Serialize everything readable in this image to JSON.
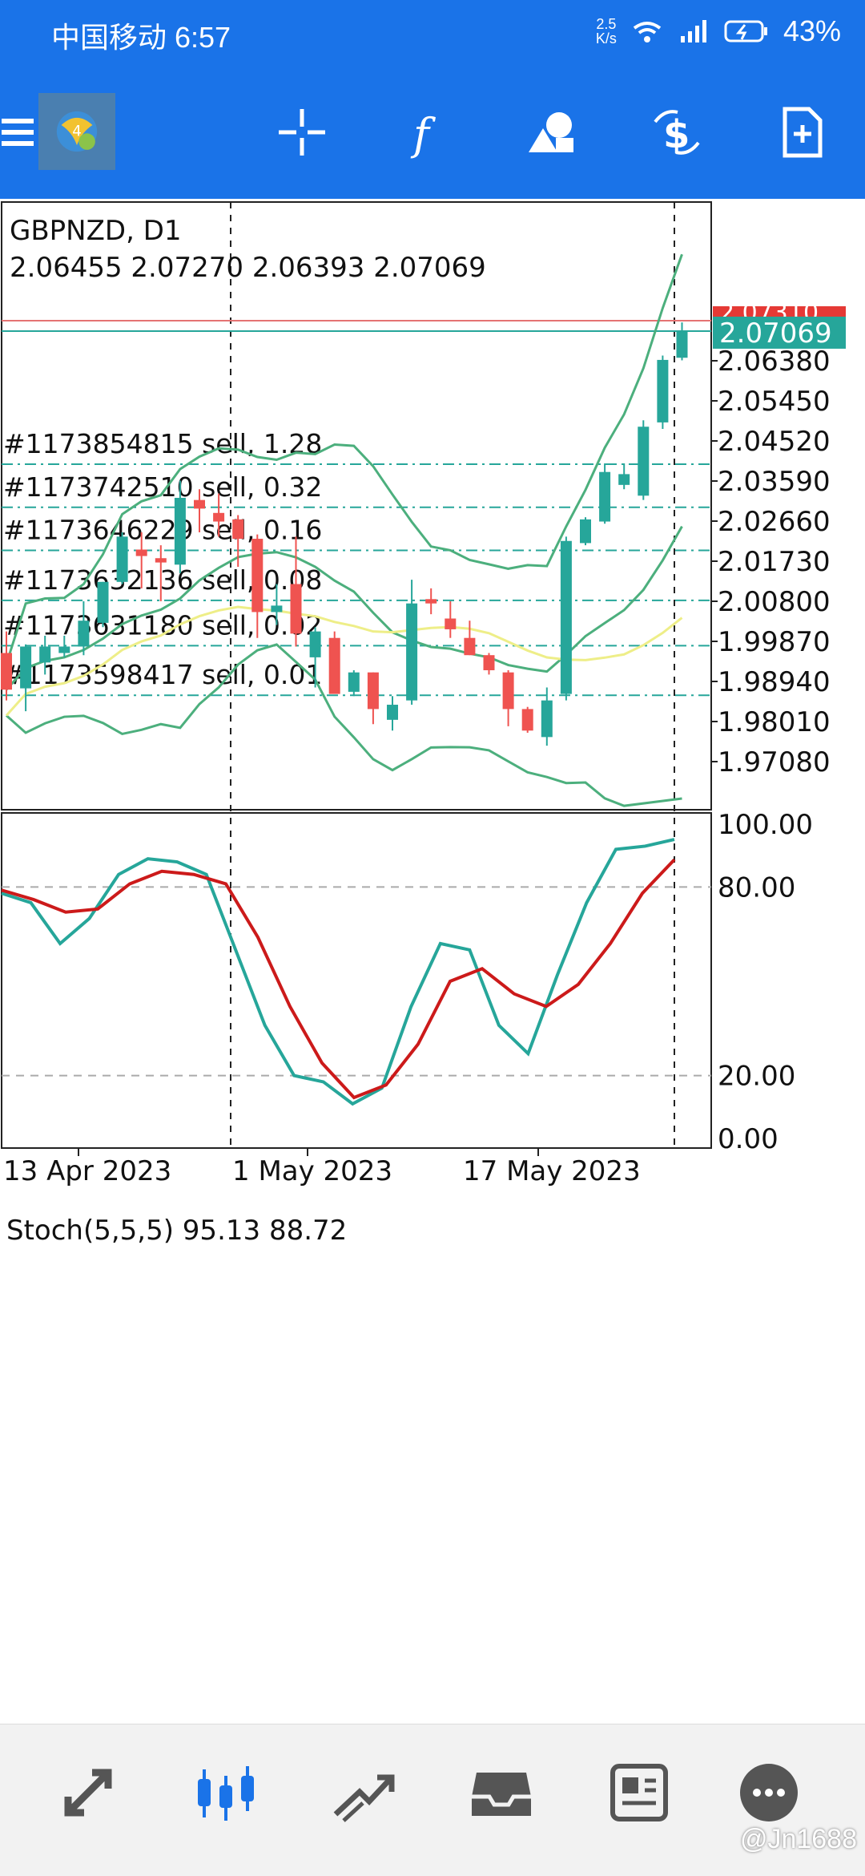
{
  "status_bar": {
    "carrier_time": "中国移动 6:57",
    "net_speed_value": "2.5",
    "net_speed_unit": "K/s",
    "battery": "43%"
  },
  "toolbar": {
    "icons": [
      "menu-icon",
      "app-logo-icon",
      "crosshair-icon",
      "indicator-f-icon",
      "objects-icon",
      "trade-dollar-icon",
      "new-order-icon"
    ]
  },
  "chart": {
    "symbol": "GBPNZD, D1",
    "ohlc": "2.06455 2.07270 2.06393 2.07069",
    "current_price_label": "2.07069",
    "hidden_price_label": "2.07310",
    "price_axis_labels": [
      "2.06380",
      "2.05450",
      "2.04520",
      "2.03590",
      "2.02660",
      "2.01730",
      "2.00800",
      "1.99870",
      "1.98940",
      "1.98010",
      "1.97080"
    ],
    "order_labels": [
      "#1173854815 sell, 1.28",
      "#1173742510 sell, 0.32",
      "#1173646229 sell, 0.16",
      "#1173632136 sell, 0.08",
      "#1173631180 sell, 0.02",
      "#1173598417 sell, 0.01"
    ],
    "stoch_label": "Stoch(5,5,5) 95.13 88.72",
    "stoch_axis_labels": [
      "100.00",
      "80.00",
      "20.00",
      "0.00"
    ],
    "date_labels": [
      "13 Apr 2023",
      "1 May 2023",
      "17 May 2023"
    ],
    "colors": {
      "bull": "#26a69a",
      "bear": "#ef5350",
      "band": "#4caf7d",
      "ma": "#eeee88",
      "stoch_main": "#26a69a",
      "stoch_signal": "#cc1a1a",
      "bid_line": "#e57373",
      "price_tag": "#26a69a",
      "hidden_tag": "#e53935"
    }
  },
  "chart_data": {
    "type": "candlestick",
    "title": "GBPNZD, D1",
    "ylim": [
      1.962,
      2.077
    ],
    "candles": [
      {
        "o": 1.996,
        "h": 2.001,
        "l": 1.985,
        "c": 1.9875
      },
      {
        "o": 1.9878,
        "h": 1.998,
        "l": 1.9825,
        "c": 1.9975
      },
      {
        "o": 1.9938,
        "h": 2.0,
        "l": 1.991,
        "c": 1.9975
      },
      {
        "o": 1.996,
        "h": 2.0,
        "l": 1.995,
        "c": 1.9975
      },
      {
        "o": 1.9975,
        "h": 2.008,
        "l": 1.9955,
        "c": 2.0035
      },
      {
        "o": 2.003,
        "h": 2.0125,
        "l": 2.002,
        "c": 2.0125
      },
      {
        "o": 2.0125,
        "h": 2.024,
        "l": 2.012,
        "c": 2.023
      },
      {
        "o": 2.02,
        "h": 2.024,
        "l": 2.011,
        "c": 2.0185
      },
      {
        "o": 2.018,
        "h": 2.021,
        "l": 2.008,
        "c": 2.017
      },
      {
        "o": 2.0165,
        "h": 2.036,
        "l": 2.0145,
        "c": 2.032
      },
      {
        "o": 2.0315,
        "h": 2.034,
        "l": 2.024,
        "c": 2.0295
      },
      {
        "o": 2.0285,
        "h": 2.033,
        "l": 2.023,
        "c": 2.0265
      },
      {
        "o": 2.027,
        "h": 2.028,
        "l": 2.016,
        "c": 2.0225
      },
      {
        "o": 2.0225,
        "h": 2.0235,
        "l": 1.9995,
        "c": 2.0055
      },
      {
        "o": 2.0055,
        "h": 2.012,
        "l": 2.0025,
        "c": 2.007
      },
      {
        "o": 2.012,
        "h": 2.023,
        "l": 1.9975,
        "c": 2.0005
      },
      {
        "o": 1.995,
        "h": 2.002,
        "l": 1.988,
        "c": 2.001
      },
      {
        "o": 1.9995,
        "h": 2.001,
        "l": 1.987,
        "c": 1.9865
      },
      {
        "o": 1.987,
        "h": 1.992,
        "l": 1.986,
        "c": 1.9915
      },
      {
        "o": 1.9915,
        "h": 1.9915,
        "l": 1.9795,
        "c": 1.983
      },
      {
        "o": 1.9805,
        "h": 1.986,
        "l": 1.978,
        "c": 1.984
      },
      {
        "o": 1.985,
        "h": 2.013,
        "l": 1.984,
        "c": 2.0075
      },
      {
        "o": 2.0085,
        "h": 2.011,
        "l": 2.005,
        "c": 2.0075
      },
      {
        "o": 2.004,
        "h": 2.008,
        "l": 1.9995,
        "c": 2.0015
      },
      {
        "o": 1.9995,
        "h": 2.0035,
        "l": 1.9955,
        "c": 1.9955
      },
      {
        "o": 1.9955,
        "h": 1.996,
        "l": 1.991,
        "c": 1.992
      },
      {
        "o": 1.9915,
        "h": 1.992,
        "l": 1.979,
        "c": 1.983
      },
      {
        "o": 1.983,
        "h": 1.9835,
        "l": 1.9775,
        "c": 1.978
      },
      {
        "o": 1.9765,
        "h": 1.988,
        "l": 1.9745,
        "c": 1.985
      },
      {
        "o": 1.9865,
        "h": 2.023,
        "l": 1.985,
        "c": 2.022
      },
      {
        "o": 2.0215,
        "h": 2.0275,
        "l": 2.021,
        "c": 2.027
      },
      {
        "o": 2.0265,
        "h": 2.04,
        "l": 2.026,
        "c": 2.038
      },
      {
        "o": 2.035,
        "h": 2.04,
        "l": 2.034,
        "c": 2.0375
      },
      {
        "o": 2.0325,
        "h": 2.05,
        "l": 2.0315,
        "c": 2.0485
      },
      {
        "o": 2.0495,
        "h": 2.065,
        "l": 2.048,
        "c": 2.064
      },
      {
        "o": 2.0645,
        "h": 2.0727,
        "l": 2.0639,
        "c": 2.0707
      }
    ],
    "stoch_main": [
      78,
      75,
      62,
      70,
      84,
      89,
      88,
      84,
      60,
      36,
      20,
      18,
      11,
      16,
      42,
      62,
      60,
      36,
      27,
      52,
      75,
      92,
      93,
      95.13
    ],
    "stoch_signal": [
      79,
      76,
      72,
      73,
      81,
      85,
      84,
      81,
      64,
      42,
      24,
      13,
      17,
      30,
      50,
      54,
      46,
      42,
      49,
      62,
      78,
      88.72
    ],
    "stoch_ylim": [
      0,
      100
    ]
  }
}
